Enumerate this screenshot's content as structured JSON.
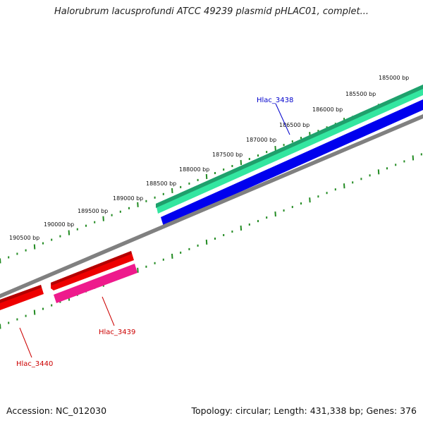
{
  "title": "Halorubrum lacusprofundi ATCC 49239 plasmid pHLAC01, complet...",
  "footer": {
    "accession": "Accession: NC_012030",
    "summary": "Topology: circular; Length: 431,338 bp; Genes: 376"
  },
  "scale": {
    "labels": [
      "185000 bp",
      "185500 bp",
      "186000 bp",
      "186500 bp",
      "187000 bp",
      "187500 bp",
      "188000 bp",
      "188500 bp",
      "189000 bp",
      "189500 bp",
      "190000 bp",
      "190500 bp"
    ]
  },
  "genes": [
    {
      "name": "Hlac_3438",
      "color": "#0000cc"
    },
    {
      "name": "Hlac_3439",
      "color": "#cc0000"
    },
    {
      "name": "Hlac_3440",
      "color": "#cc0000"
    }
  ],
  "colors": {
    "backbone": "#808080",
    "cds_forward": "#0000ee",
    "cds_reverse": "#ee0000",
    "gene_forward": "#33e6a0",
    "gene_reverse": "#ee1a8c",
    "ticks": "#228b22"
  }
}
